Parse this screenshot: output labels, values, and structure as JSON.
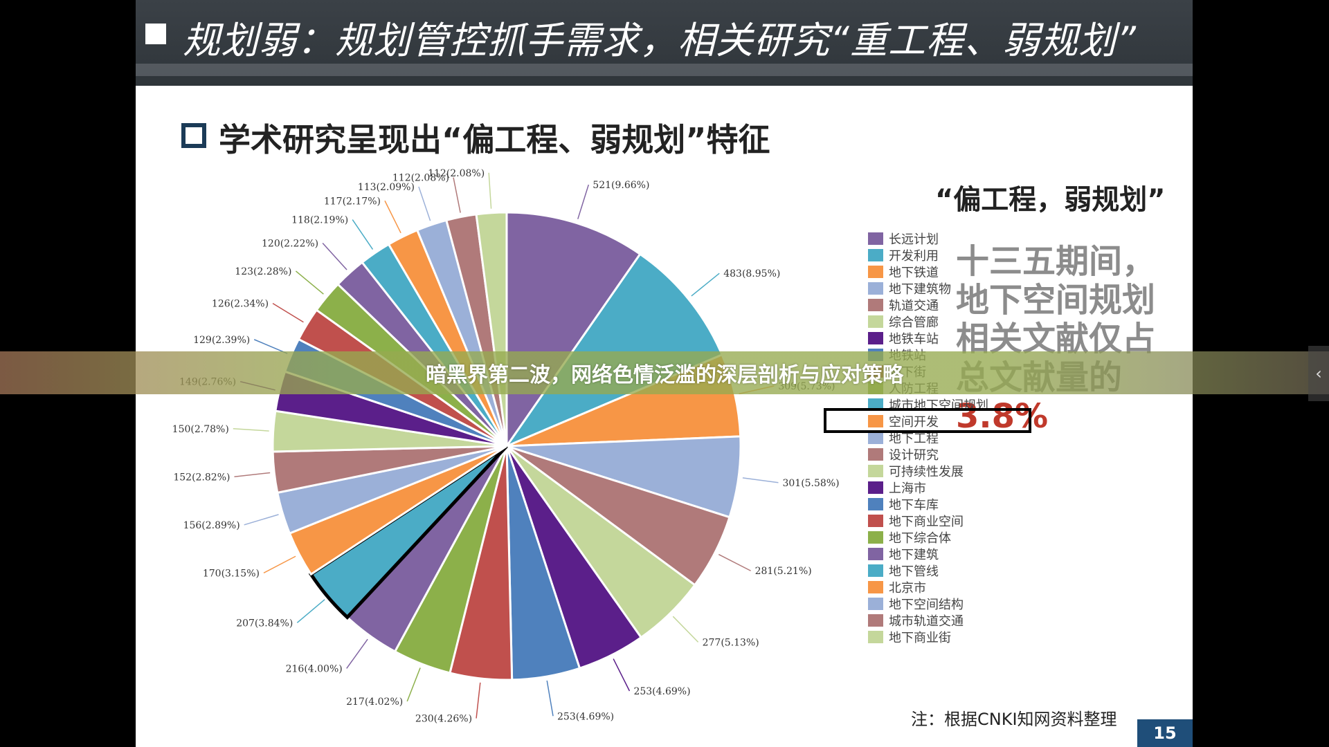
{
  "header": {
    "title": "规划弱：规划管控抓手需求，相关研究“重工程、弱规划”"
  },
  "subtitle": "学术研究呈现出“偏工程、弱规划”特征",
  "emphasis": {
    "title": "“偏工程，弱规划”",
    "body": "十三五期间，地下空间规划相关文献仅占总文献量的",
    "value": "3.8%"
  },
  "footnote": "注：根据CNKI知网资料整理",
  "page_number": "15",
  "overlay": {
    "text": "暗黑界第二波，网络色情泛滥的深层剖析与应对策略",
    "arrow": "‹"
  },
  "highlighted_legend": "城市地下空间规划",
  "chart_data": {
    "type": "pie",
    "slices": [
      {
        "category": "长远计划",
        "value": 521,
        "label": "521(9.66%)",
        "color": "#8064a2"
      },
      {
        "category": "开发利用",
        "value": 483,
        "label": "483(8.95%)",
        "color": "#4bacc6"
      },
      {
        "category": "地下铁道",
        "value": 309,
        "label": "309(5.73%)",
        "color": "#f79646"
      },
      {
        "category": "地下建筑物",
        "value": 301,
        "label": "301(5.58%)",
        "color": "#9bb0d8"
      },
      {
        "category": "轨道交通",
        "value": 281,
        "label": "281(5.21%)",
        "color": "#b07a7a"
      },
      {
        "category": "综合管廊",
        "value": 277,
        "label": "277(5.13%)",
        "color": "#c4d79b"
      },
      {
        "category": "地铁车站",
        "value": 253,
        "label": "253(4.69%)",
        "color": "#5b1f8a"
      },
      {
        "category": "地铁站",
        "value": 253,
        "label": "253(4.69%)",
        "color": "#4f81bd"
      },
      {
        "category": "地下街",
        "value": 230,
        "label": "230(4.26%)",
        "color": "#c0504d"
      },
      {
        "category": "人防工程",
        "value": 217,
        "label": "217(4.02%)",
        "color": "#8cb04a"
      },
      {
        "category": "",
        "value": 216,
        "label": "216(4.00%)",
        "color": "#8064a2"
      },
      {
        "category": "城市地下空间规划",
        "value": 207,
        "label": "207(3.84%)",
        "color": "#4bacc6"
      },
      {
        "category": "空间开发",
        "value": 170,
        "label": "170(3.15%)",
        "color": "#f79646"
      },
      {
        "category": "地下工程",
        "value": 156,
        "label": "156(2.89%)",
        "color": "#9bb0d8"
      },
      {
        "category": "设计研究",
        "value": 152,
        "label": "152(2.82%)",
        "color": "#b07a7a"
      },
      {
        "category": "可持续性发展",
        "value": 150,
        "label": "150(2.78%)",
        "color": "#c4d79b"
      },
      {
        "category": "上海市",
        "value": 149,
        "label": "149(2.76%)",
        "color": "#5b1f8a"
      },
      {
        "category": "地下车库",
        "value": 129,
        "label": "129(2.39%)",
        "color": "#4f81bd"
      },
      {
        "category": "地下商业空间",
        "value": 126,
        "label": "126(2.34%)",
        "color": "#c0504d"
      },
      {
        "category": "地下综合体",
        "value": 123,
        "label": "123(2.28%)",
        "color": "#8cb04a"
      },
      {
        "category": "地下建筑",
        "value": 120,
        "label": "120(2.22%)",
        "color": "#8064a2"
      },
      {
        "category": "地下管线",
        "value": 118,
        "label": "118(2.19%)",
        "color": "#4bacc6"
      },
      {
        "category": "北京市",
        "value": 117,
        "label": "117(2.17%)",
        "color": "#f79646"
      },
      {
        "category": "地下空间结构",
        "value": 113,
        "label": "113(2.09%)",
        "color": "#9bb0d8"
      },
      {
        "category": "城市轨道交通",
        "value": 112,
        "label": "112(2.08%)",
        "color": "#b07a7a"
      },
      {
        "category": "地下商业街",
        "value": 112,
        "label": "112(2.08%)",
        "color": "#c4d79b"
      }
    ],
    "legend": [
      {
        "label": "长远计划",
        "color": "#8064a2"
      },
      {
        "label": "开发利用",
        "color": "#4bacc6"
      },
      {
        "label": "地下铁道",
        "color": "#f79646"
      },
      {
        "label": "地下建筑物",
        "color": "#9bb0d8"
      },
      {
        "label": "轨道交通",
        "color": "#b07a7a"
      },
      {
        "label": "综合管廊",
        "color": "#c4d79b"
      },
      {
        "label": "地铁车站",
        "color": "#5b1f8a"
      },
      {
        "label": "地铁站",
        "color": "#4f81bd"
      },
      {
        "label": "地下街",
        "color": "#c0504d"
      },
      {
        "label": "人防工程",
        "color": "#8cb04a"
      },
      {
        "label": "城市地下空间规划",
        "color": "#4bacc6"
      },
      {
        "label": "空间开发",
        "color": "#f79646"
      },
      {
        "label": "地下工程",
        "color": "#9bb0d8"
      },
      {
        "label": "设计研究",
        "color": "#b07a7a"
      },
      {
        "label": "可持续性发展",
        "color": "#c4d79b"
      },
      {
        "label": "上海市",
        "color": "#5b1f8a"
      },
      {
        "label": "地下车库",
        "color": "#4f81bd"
      },
      {
        "label": "地下商业空间",
        "color": "#c0504d"
      },
      {
        "label": "地下综合体",
        "color": "#8cb04a"
      },
      {
        "label": "地下建筑",
        "color": "#8064a2"
      },
      {
        "label": "地下管线",
        "color": "#4bacc6"
      },
      {
        "label": "北京市",
        "color": "#f79646"
      },
      {
        "label": "地下空间结构",
        "color": "#9bb0d8"
      },
      {
        "label": "城市轨道交通",
        "color": "#b07a7a"
      },
      {
        "label": "地下商业街",
        "color": "#c4d79b"
      }
    ],
    "legend_position": "right",
    "highlighted_slice": "207(3.84%)"
  }
}
